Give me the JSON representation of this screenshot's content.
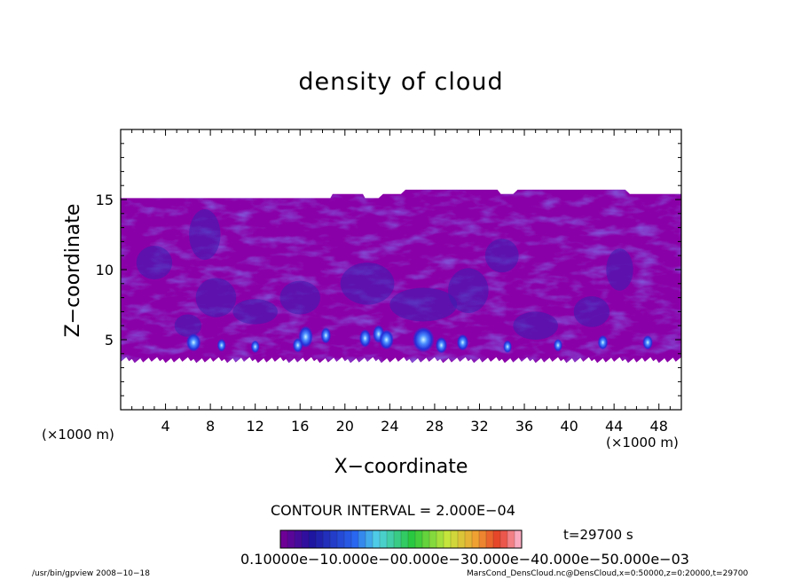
{
  "chart_data": {
    "type": "heatmap",
    "title": "density of cloud",
    "xlabel": "X−coordinate",
    "ylabel": "Z−coordinate",
    "x_unit": "(×1000 m)",
    "xlim": [
      0,
      50
    ],
    "ylim": [
      0,
      20
    ],
    "x_ticks": [
      4,
      8,
      12,
      16,
      20,
      24,
      28,
      32,
      36,
      40,
      44,
      48
    ],
    "y_ticks": [
      5,
      10,
      15
    ],
    "cloud_layer": {
      "z_bottom": 3.7,
      "z_top": 15.1
    },
    "contour_interval": "CONTOUR INTERVAL = 2.000E−04",
    "time_label": "t=29700 s",
    "colorbar_labels": "0.10000e−10.000e−00.000e−30.000e−40.000e−50.000e−03",
    "colors": {
      "background_fill": "#8a00a8",
      "dark_patch": "#3a1fb0",
      "bright_cell": "#1f4cff",
      "core": "#9fe8ff"
    }
  },
  "footer": {
    "left": "/usr/bin/gpview   2008−10−18",
    "right": "MarsCond_DensCloud.nc@DensCloud,x=0:50000,z=0:20000,t=29700"
  }
}
